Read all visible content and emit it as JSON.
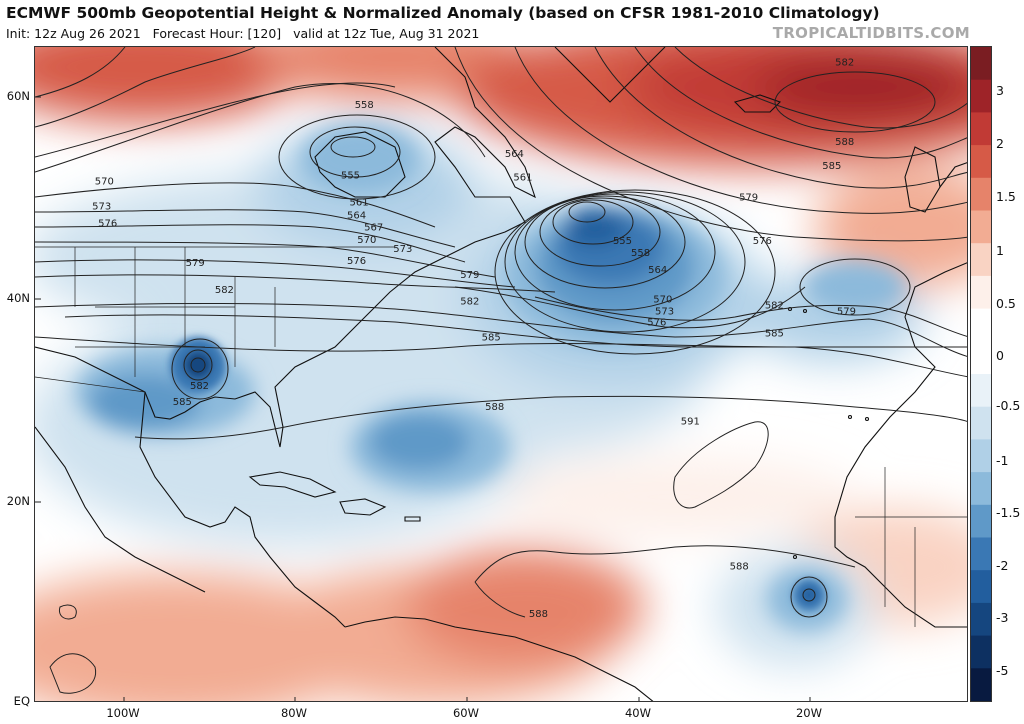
{
  "header": {
    "title": "ECMWF 500mb Geopotential Height & Normalized Anomaly (based on CFSR 1981-2010 Climatology)",
    "init": "Init: 12z Aug 26 2021",
    "forecast_hour": "Forecast Hour: [120]",
    "valid": "valid at 12z Tue, Aug 31 2021",
    "brand": "TROPICALTIDBITS.COM"
  },
  "map": {
    "lat_labels": [
      "60N",
      "40N",
      "20N",
      "EQ"
    ],
    "lon_labels": [
      "100W",
      "80W",
      "60W",
      "40W",
      "20W"
    ],
    "contour_labels": [
      {
        "text": "582",
        "lon": -16,
        "lat": 63.5
      },
      {
        "text": "588",
        "lon": -16,
        "lat": 55.6
      },
      {
        "text": "585",
        "lon": -17.5,
        "lat": 53.2
      },
      {
        "text": "558",
        "lon": -72,
        "lat": 59.3
      },
      {
        "text": "555",
        "lon": -73.6,
        "lat": 52.3
      },
      {
        "text": "561",
        "lon": -72.6,
        "lat": 49.6
      },
      {
        "text": "564",
        "lon": -72.9,
        "lat": 48.3
      },
      {
        "text": "564",
        "lon": -54.5,
        "lat": 54.4
      },
      {
        "text": "567",
        "lon": -70.9,
        "lat": 47.1
      },
      {
        "text": "570",
        "lon": -71.7,
        "lat": 45.9
      },
      {
        "text": "573",
        "lon": -67.5,
        "lat": 45.0
      },
      {
        "text": "576",
        "lon": -72.9,
        "lat": 43.8
      },
      {
        "text": "570",
        "lon": -102.3,
        "lat": 51.7
      },
      {
        "text": "573",
        "lon": -102.6,
        "lat": 49.2
      },
      {
        "text": "576",
        "lon": -101.9,
        "lat": 47.5
      },
      {
        "text": "579",
        "lon": -91.7,
        "lat": 43.6
      },
      {
        "text": "582",
        "lon": -88.3,
        "lat": 40.9
      },
      {
        "text": "579",
        "lon": -59.7,
        "lat": 42.4
      },
      {
        "text": "582",
        "lon": -59.7,
        "lat": 39.8
      },
      {
        "text": "585",
        "lon": -57.2,
        "lat": 36.2
      },
      {
        "text": "582",
        "lon": -91.2,
        "lat": 31.4
      },
      {
        "text": "585",
        "lon": -93.2,
        "lat": 29.8
      },
      {
        "text": "588",
        "lon": -56.8,
        "lat": 29.3
      },
      {
        "text": "591",
        "lon": -34.0,
        "lat": 27.9
      },
      {
        "text": "588",
        "lon": -28.3,
        "lat": 13.5
      },
      {
        "text": "588",
        "lon": -51.7,
        "lat": 8.8
      },
      {
        "text": "561",
        "lon": -53.5,
        "lat": 52.1
      },
      {
        "text": "555",
        "lon": -41.9,
        "lat": 45.8
      },
      {
        "text": "558",
        "lon": -39.8,
        "lat": 44.6
      },
      {
        "text": "564",
        "lon": -37.8,
        "lat": 42.9
      },
      {
        "text": "570",
        "lon": -37.2,
        "lat": 40.0
      },
      {
        "text": "573",
        "lon": -37.0,
        "lat": 38.8
      },
      {
        "text": "576",
        "lon": -37.9,
        "lat": 37.7
      },
      {
        "text": "579",
        "lon": -27.2,
        "lat": 50.1
      },
      {
        "text": "576",
        "lon": -25.6,
        "lat": 45.8
      },
      {
        "text": "582",
        "lon": -24.2,
        "lat": 39.4
      },
      {
        "text": "585",
        "lon": -24.2,
        "lat": 36.6
      },
      {
        "text": "579",
        "lon": -15.8,
        "lat": 38.8
      }
    ]
  },
  "colorbar": {
    "labels": [
      "3",
      "2",
      "1.5",
      "1",
      "0.5",
      "0",
      "-0.5",
      "-1",
      "-1.5",
      "-2",
      "-3",
      "-5"
    ],
    "colors": [
      "#7a1d22",
      "#9e2328",
      "#c13a35",
      "#d65a47",
      "#e6836a",
      "#f2ac93",
      "#f9d3c3",
      "#fdf0ea",
      "#ffffff",
      "#ffffff",
      "#e9f2f8",
      "#cfe2ef",
      "#b0d0e7",
      "#8cbadb",
      "#5f99c8",
      "#3a78b4",
      "#225e9e",
      "#15467f",
      "#0d3061",
      "#081a40"
    ]
  }
}
